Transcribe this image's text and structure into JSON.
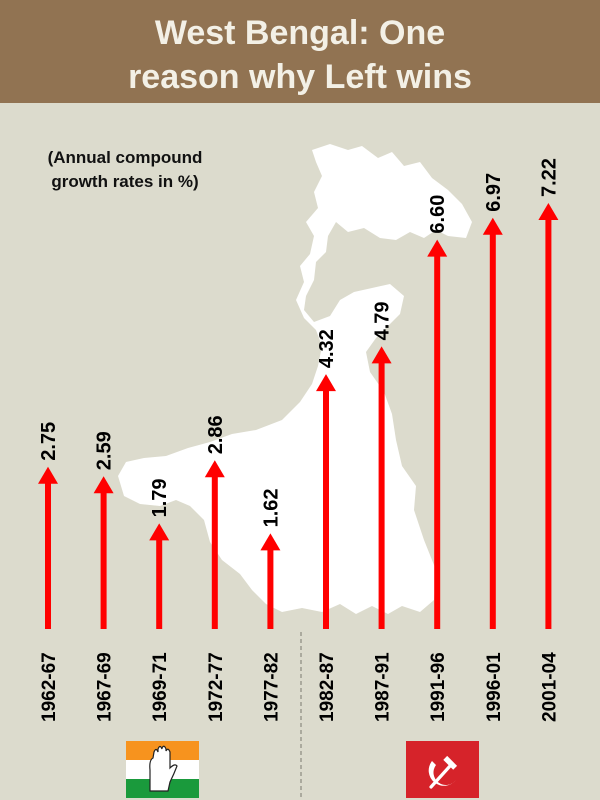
{
  "title": {
    "line1": "West Bengal: One",
    "line2": "reason why Left wins"
  },
  "note": {
    "line1": "(Annual compound",
    "line2": "growth rates in %)"
  },
  "colors": {
    "banner": "#917352",
    "background": "#dcdbcd",
    "arrow": "#ff0000",
    "map": "#ffffff",
    "congress_saffron": "#f7931e",
    "congress_green": "#1a9a3c",
    "cpim_red": "#d6232a"
  },
  "icons": {
    "congress": "congress-hand-icon",
    "cpim": "hammer-sickle-icon"
  },
  "chart_data": {
    "type": "bar",
    "orientation": "vertical-arrows",
    "categories": [
      "1962-67",
      "1967-69",
      "1969-71",
      "1972-77",
      "1977-82",
      "1982-87",
      "1987-91",
      "1991-96",
      "1996-01",
      "2001-04"
    ],
    "values": [
      2.75,
      2.59,
      1.79,
      2.86,
      1.62,
      4.32,
      4.79,
      6.6,
      6.97,
      7.22
    ],
    "value_labels": [
      "2.75",
      "2.59",
      "1.79",
      "2.86",
      "1.62",
      "4.32",
      "4.79",
      "6.60",
      "6.97",
      "7.22"
    ],
    "ylim": [
      0,
      8
    ],
    "grid": false,
    "legend": "none"
  }
}
